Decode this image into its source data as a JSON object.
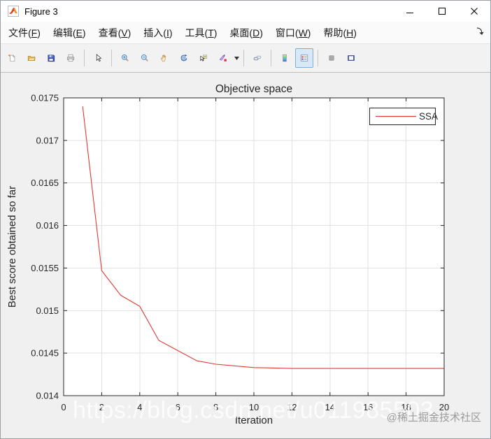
{
  "window": {
    "title": "Figure 3",
    "icon": "matlab-logo-icon",
    "controls": [
      "minimize",
      "maximize",
      "close"
    ]
  },
  "menu": {
    "items": [
      {
        "id": "file",
        "pre": "文件(",
        "mn": "F",
        "post": ")"
      },
      {
        "id": "edit",
        "pre": "编辑(",
        "mn": "E",
        "post": ")"
      },
      {
        "id": "view",
        "pre": "查看(",
        "mn": "V",
        "post": ")"
      },
      {
        "id": "insert",
        "pre": "插入(",
        "mn": "I",
        "post": ")"
      },
      {
        "id": "tools",
        "pre": "工具(",
        "mn": "T",
        "post": ")"
      },
      {
        "id": "desktop",
        "pre": "桌面(",
        "mn": "D",
        "post": ")"
      },
      {
        "id": "window",
        "pre": "窗口(",
        "mn": "W",
        "post": ")"
      },
      {
        "id": "help",
        "pre": "帮助(",
        "mn": "H",
        "post": ")"
      }
    ],
    "overflow_icon": "menu-overflow-arrow-icon"
  },
  "toolbar": {
    "icons": [
      "new-figure-icon",
      "open-file-icon",
      "save-figure-icon",
      "print-figure-icon",
      "edit-plot-icon",
      "zoom-in-icon",
      "zoom-out-icon",
      "pan-icon",
      "rotate-3d-icon",
      "data-cursor-icon",
      "brush-data-icon",
      "brush-dropdown-icon",
      "link-plot-icon",
      "insert-colorbar-icon",
      "insert-legend-icon",
      "hide-plot-tools-icon",
      "show-plot-tools-icon"
    ],
    "active": "insert-legend"
  },
  "chart_data": {
    "type": "line",
    "title": "Objective space",
    "xlabel": "Iteration",
    "ylabel": "Best score obtained so far",
    "xlim": [
      0,
      20
    ],
    "ylim": [
      0.014,
      0.0175
    ],
    "x_ticks": [
      0,
      2,
      4,
      6,
      8,
      10,
      12,
      14,
      16,
      18,
      20
    ],
    "y_ticks": [
      0.014,
      0.0145,
      0.015,
      0.0155,
      0.016,
      0.0165,
      0.017,
      0.0175
    ],
    "y_tick_labels": [
      "0.014",
      "0.0145",
      "0.015",
      "0.0155",
      "0.016",
      "0.0165",
      "0.017",
      "0.0175"
    ],
    "grid": true,
    "legend": {
      "position": "northeast",
      "entries": [
        "SSA"
      ]
    },
    "series": [
      {
        "name": "SSA",
        "color": "#e03a34",
        "x": [
          1,
          2,
          3,
          4,
          5,
          6,
          7,
          8,
          9,
          10,
          11,
          12,
          13,
          14,
          15,
          16,
          17,
          18,
          19,
          20
        ],
        "y": [
          0.0174,
          0.01547,
          0.01518,
          0.01505,
          0.01465,
          0.01453,
          0.01441,
          0.01437,
          0.01435,
          0.01433,
          0.014325,
          0.01432,
          0.01432,
          0.01432,
          0.01432,
          0.01432,
          0.01432,
          0.01432,
          0.01432,
          0.01432
        ]
      }
    ],
    "colors": {
      "axis": "#262626",
      "grid": "#e2e2e2",
      "text": "#262626",
      "plot_bg": "#ffffff",
      "figure_bg": "#f0f0f0"
    }
  },
  "watermarks": {
    "url": "https://blog.csdn.net/u011985503",
    "community": "@稀土掘金技术社区"
  }
}
